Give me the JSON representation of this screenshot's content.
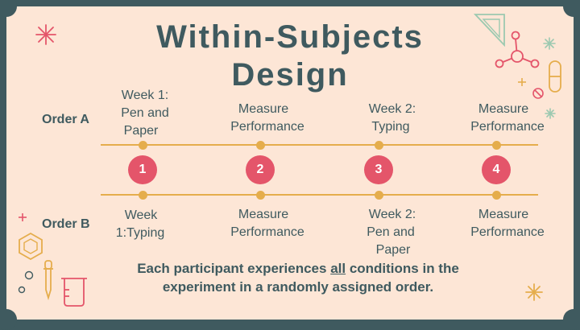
{
  "title": {
    "line1": "Within-Subjects",
    "line2": "Design"
  },
  "orders": {
    "a": {
      "label": "Order A",
      "steps": [
        {
          "l1": "Week 1:",
          "l2": "Pen and",
          "l3": "Paper"
        },
        {
          "l1": "Measure",
          "l2": "Performance"
        },
        {
          "l1": "Week 2:",
          "l2": "Typing"
        },
        {
          "l1": "Measure",
          "l2": "Performance"
        }
      ]
    },
    "b": {
      "label": "Order B",
      "steps": [
        {
          "l1": "Week",
          "l2": "1:Typing"
        },
        {
          "l1": "Measure",
          "l2": "Performance"
        },
        {
          "l1": "Week 2:",
          "l2": "Pen and",
          "l3": "Paper"
        },
        {
          "l1": "Measure",
          "l2": "Performance"
        }
      ]
    }
  },
  "steps": [
    "1",
    "2",
    "3",
    "4"
  ],
  "footer": {
    "pre": "Each participant experiences ",
    "emph": "all",
    "post": " conditions in the",
    "line2": "experiment in a randomly assigned order."
  },
  "colors": {
    "background": "#fde6d6",
    "frame": "#3f5a5f",
    "text": "#3f5a5f",
    "timeline": "#e5ad4c",
    "step_circle": "#e4556a"
  },
  "icons": [
    "sparkle-icon",
    "molecule-icon",
    "triangle-ruler-icon",
    "pill-icon",
    "hexagon-icon",
    "dropper-icon",
    "beaker-icon",
    "plus-icon",
    "no-symbol-icon"
  ]
}
